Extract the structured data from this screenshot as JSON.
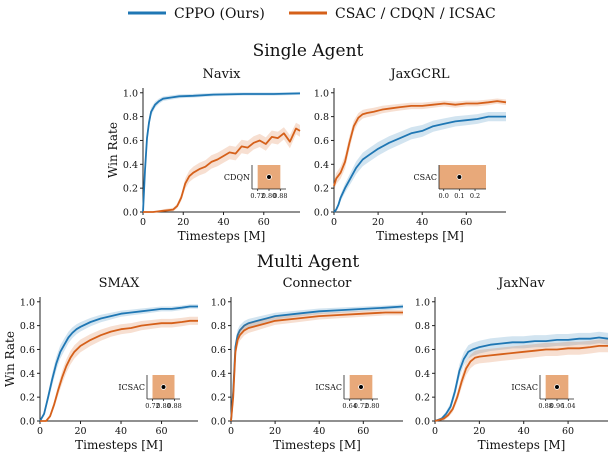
{
  "legend": {
    "entries": [
      {
        "label": "CPPO (Ours)",
        "color": "#1f77b4"
      },
      {
        "label": "CSAC / CDQN / ICSAC",
        "color": "#d5601a"
      }
    ]
  },
  "sections": [
    "Single Agent",
    "Multi Agent"
  ],
  "colors": {
    "cppo": "#1f77b4",
    "baseline": "#d5601a",
    "inset_fill": "#e8a97a"
  },
  "chart_data": [
    {
      "type": "line",
      "title": "Navix",
      "section": "Single Agent",
      "xlabel": "Timesteps [M]",
      "ylabel": "Win Rate",
      "xlim": [
        0,
        78
      ],
      "ylim": [
        0,
        1.04
      ],
      "xticks": [
        0,
        20,
        40,
        60
      ],
      "yticks": [
        0.0,
        0.2,
        0.4,
        0.6,
        0.8,
        1.0
      ],
      "series": [
        {
          "name": "CPPO (Ours)",
          "x": [
            0,
            1,
            2,
            3,
            4,
            6,
            8,
            10,
            14,
            18,
            25,
            35,
            50,
            65,
            78
          ],
          "y": [
            0,
            0.35,
            0.62,
            0.75,
            0.84,
            0.9,
            0.93,
            0.95,
            0.96,
            0.97,
            0.975,
            0.985,
            0.99,
            0.99,
            0.995
          ]
        },
        {
          "name": "CSAC / CDQN / ICSAC",
          "x": [
            0,
            5,
            10,
            15,
            17,
            19,
            21,
            23,
            25,
            28,
            31,
            34,
            37,
            40,
            43,
            46,
            49,
            52,
            55,
            58,
            61,
            64,
            67,
            70,
            73,
            76,
            78
          ],
          "y": [
            0,
            0,
            0.01,
            0.02,
            0.05,
            0.12,
            0.24,
            0.3,
            0.33,
            0.36,
            0.38,
            0.42,
            0.44,
            0.47,
            0.5,
            0.49,
            0.55,
            0.54,
            0.58,
            0.6,
            0.57,
            0.63,
            0.62,
            0.66,
            0.59,
            0.7,
            0.68
          ]
        }
      ],
      "inset": {
        "label": "CDQN",
        "ticks": [
          "0.72",
          "0.80",
          "0.88"
        ],
        "range": [
          0.68,
          0.92
        ],
        "point": 0.8,
        "band": [
          0.72,
          0.88
        ]
      }
    },
    {
      "type": "line",
      "title": "JaxGCRL",
      "section": "Single Agent",
      "xlabel": "Timesteps [M]",
      "ylabel": "",
      "xlim": [
        0,
        78
      ],
      "ylim": [
        0,
        1.04
      ],
      "xticks": [
        0,
        20,
        40,
        60
      ],
      "yticks": [
        0.0,
        0.2,
        0.4,
        0.6,
        0.8,
        1.0
      ],
      "series": [
        {
          "name": "CPPO (Ours)",
          "x": [
            0,
            1,
            2,
            3,
            5,
            8,
            10,
            13,
            16,
            20,
            25,
            30,
            35,
            40,
            45,
            50,
            55,
            60,
            65,
            70,
            74,
            78
          ],
          "y": [
            0,
            0.02,
            0.06,
            0.12,
            0.2,
            0.3,
            0.37,
            0.44,
            0.48,
            0.53,
            0.58,
            0.62,
            0.66,
            0.68,
            0.72,
            0.74,
            0.76,
            0.77,
            0.78,
            0.8,
            0.8,
            0.8
          ]
        },
        {
          "name": "CSAC / CDQN / ICSAC",
          "x": [
            0,
            1,
            3,
            5,
            7,
            9,
            11,
            13,
            15,
            18,
            22,
            26,
            30,
            35,
            40,
            45,
            50,
            55,
            60,
            65,
            70,
            74,
            78
          ],
          "y": [
            0.22,
            0.28,
            0.33,
            0.42,
            0.58,
            0.72,
            0.79,
            0.82,
            0.83,
            0.84,
            0.86,
            0.87,
            0.88,
            0.89,
            0.89,
            0.9,
            0.91,
            0.9,
            0.91,
            0.91,
            0.92,
            0.93,
            0.92
          ]
        }
      ],
      "inset": {
        "label": "CSAC",
        "ticks": [
          "0.0",
          "0.1",
          "0.2"
        ],
        "range": [
          -0.03,
          0.27
        ],
        "point": 0.1,
        "band": [
          -0.03,
          0.27
        ]
      }
    },
    {
      "type": "line",
      "title": "SMAX",
      "section": "Multi Agent",
      "xlabel": "Timesteps [M]",
      "ylabel": "Win Rate",
      "xlim": [
        0,
        78
      ],
      "ylim": [
        0,
        1.04
      ],
      "xticks": [
        0,
        20,
        40,
        60
      ],
      "yticks": [
        0.0,
        0.2,
        0.4,
        0.6,
        0.8,
        1.0
      ],
      "series": [
        {
          "name": "CPPO (Ours)",
          "x": [
            0,
            2,
            4,
            6,
            8,
            10,
            12,
            14,
            16,
            18,
            20,
            25,
            30,
            35,
            40,
            45,
            50,
            55,
            60,
            65,
            70,
            74,
            78
          ],
          "y": [
            0,
            0.06,
            0.2,
            0.35,
            0.48,
            0.58,
            0.64,
            0.7,
            0.74,
            0.77,
            0.79,
            0.83,
            0.86,
            0.88,
            0.9,
            0.91,
            0.92,
            0.93,
            0.94,
            0.94,
            0.95,
            0.96,
            0.96
          ]
        },
        {
          "name": "CSAC / CDQN / ICSAC",
          "x": [
            0,
            3,
            5,
            7,
            9,
            11,
            13,
            15,
            17,
            20,
            25,
            30,
            35,
            40,
            45,
            50,
            55,
            60,
            65,
            70,
            74,
            78
          ],
          "y": [
            0,
            0,
            0.04,
            0.14,
            0.26,
            0.37,
            0.46,
            0.53,
            0.58,
            0.63,
            0.68,
            0.72,
            0.75,
            0.77,
            0.78,
            0.8,
            0.81,
            0.82,
            0.82,
            0.83,
            0.84,
            0.84
          ]
        }
      ],
      "inset": {
        "label": "ICSAC",
        "ticks": [
          "0.72",
          "0.80",
          "0.88"
        ],
        "range": [
          0.68,
          0.92
        ],
        "point": 0.8,
        "band": [
          0.72,
          0.88
        ]
      }
    },
    {
      "type": "line",
      "title": "Connector",
      "section": "Multi Agent",
      "xlabel": "Timesteps [M]",
      "ylabel": "",
      "xlim": [
        0,
        78
      ],
      "ylim": [
        0,
        1.04
      ],
      "xticks": [
        0,
        20,
        40,
        60
      ],
      "yticks": [
        0.0,
        0.2,
        0.4,
        0.6,
        0.8,
        1.0
      ],
      "series": [
        {
          "name": "CPPO (Ours)",
          "x": [
            0,
            1,
            2,
            3,
            4,
            6,
            8,
            12,
            16,
            20,
            30,
            40,
            50,
            60,
            70,
            78
          ],
          "y": [
            0,
            0.25,
            0.62,
            0.72,
            0.76,
            0.8,
            0.82,
            0.84,
            0.86,
            0.88,
            0.9,
            0.92,
            0.93,
            0.94,
            0.95,
            0.96
          ]
        },
        {
          "name": "CSAC / CDQN / ICSAC",
          "x": [
            0,
            1,
            2,
            3,
            4,
            6,
            8,
            12,
            16,
            20,
            30,
            40,
            50,
            60,
            70,
            78
          ],
          "y": [
            0,
            0.2,
            0.58,
            0.68,
            0.72,
            0.76,
            0.78,
            0.8,
            0.82,
            0.84,
            0.86,
            0.88,
            0.89,
            0.9,
            0.91,
            0.91
          ]
        }
      ],
      "inset": {
        "label": "ICSAC",
        "ticks": [
          "0.64",
          "0.72",
          "0.80"
        ],
        "range": [
          0.6,
          0.84
        ],
        "point": 0.72,
        "band": [
          0.64,
          0.8
        ]
      }
    },
    {
      "type": "line",
      "title": "JaxNav",
      "section": "Multi Agent",
      "xlabel": "Timesteps [M]",
      "ylabel": "",
      "xlim": [
        0,
        78
      ],
      "ylim": [
        0,
        1.04
      ],
      "xticks": [
        0,
        20,
        40,
        60
      ],
      "yticks": [
        0.0,
        0.2,
        0.4,
        0.6,
        0.8,
        1.0
      ],
      "series": [
        {
          "name": "CPPO (Ours)",
          "x": [
            0,
            3,
            5,
            7,
            9,
            11,
            13,
            15,
            17,
            20,
            25,
            30,
            35,
            40,
            45,
            50,
            55,
            60,
            65,
            70,
            74,
            78
          ],
          "y": [
            0,
            0.02,
            0.06,
            0.12,
            0.25,
            0.42,
            0.52,
            0.58,
            0.6,
            0.62,
            0.64,
            0.65,
            0.66,
            0.66,
            0.67,
            0.67,
            0.68,
            0.68,
            0.69,
            0.69,
            0.7,
            0.69
          ]
        },
        {
          "name": "CSAC / CDQN / ICSAC",
          "x": [
            0,
            4,
            6,
            8,
            10,
            12,
            14,
            16,
            18,
            20,
            25,
            30,
            35,
            40,
            45,
            50,
            55,
            60,
            65,
            70,
            74,
            78
          ],
          "y": [
            0,
            0.02,
            0.05,
            0.1,
            0.2,
            0.33,
            0.44,
            0.5,
            0.53,
            0.54,
            0.55,
            0.56,
            0.57,
            0.58,
            0.59,
            0.6,
            0.6,
            0.61,
            0.61,
            0.62,
            0.63,
            0.63
          ]
        }
      ],
      "inset": {
        "label": "ICSAC",
        "ticks": [
          "0.88",
          "0.96",
          "1.04"
        ],
        "range": [
          0.84,
          1.08
        ],
        "point": 0.96,
        "band": [
          0.88,
          1.04
        ]
      }
    }
  ]
}
